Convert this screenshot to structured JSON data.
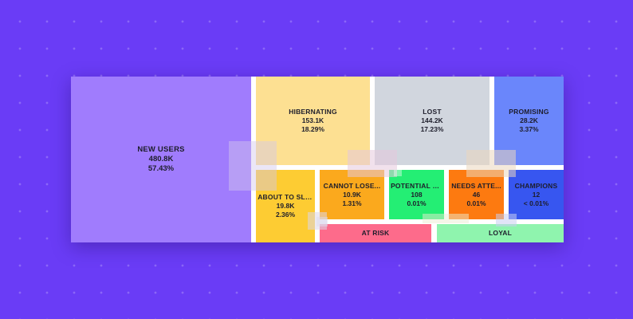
{
  "chart_data": {
    "type": "treemap",
    "segments": [
      {
        "key": "new_users",
        "name": "NEW USERS",
        "value": "480.8K",
        "percent": "57.43%",
        "color": "#a07cfd",
        "text": "#1d1d2b"
      },
      {
        "key": "hibernating",
        "name": "HIBERNATING",
        "value": "153.1K",
        "percent": "18.29%",
        "color": "#fde092",
        "text": "#1d1d2b"
      },
      {
        "key": "lost",
        "name": "LOST",
        "value": "144.2K",
        "percent": "17.23%",
        "color": "#d1d6de",
        "text": "#1d1d2b"
      },
      {
        "key": "promising",
        "name": "PROMISING",
        "value": "28.2K",
        "percent": "3.37%",
        "color": "#6a86fb",
        "text": "#1d1d2b"
      },
      {
        "key": "about_to_sleep",
        "name": "ABOUT TO SLE...",
        "value": "19.8K",
        "percent": "2.36%",
        "color": "#fdcc33",
        "text": "#1d1d2b"
      },
      {
        "key": "cannot_lose",
        "name": "CANNOT LOSE...",
        "value": "10.9K",
        "percent": "1.31%",
        "color": "#fba91d",
        "text": "#1d1d2b"
      },
      {
        "key": "potential_loyalist",
        "name": "POTENTIAL LO...",
        "value": "108",
        "percent": "0.01%",
        "color": "#24ee74",
        "text": "#1d1d2b"
      },
      {
        "key": "needs_attention",
        "name": "NEEDS ATTE...",
        "value": "46",
        "percent": "0.01%",
        "color": "#fd7a10",
        "text": "#1d1d2b"
      },
      {
        "key": "champions",
        "name": "CHAMPIONS",
        "value": "12",
        "percent": "< 0.01%",
        "color": "#3756f0",
        "text": "#1d1d2b"
      },
      {
        "key": "at_risk",
        "name": "AT RISK",
        "value": "",
        "percent": "",
        "color": "#fd6b8b",
        "text": "#1d1d2b"
      },
      {
        "key": "loyal",
        "name": "LOYAL",
        "value": "",
        "percent": "",
        "color": "#8ff4ae",
        "text": "#1d1d2b"
      }
    ]
  },
  "theme": {
    "page_background": "#6a3cf6",
    "dot_pattern": "white dots grid",
    "overlay_squares": "semi-transparent hover highlight squares"
  }
}
